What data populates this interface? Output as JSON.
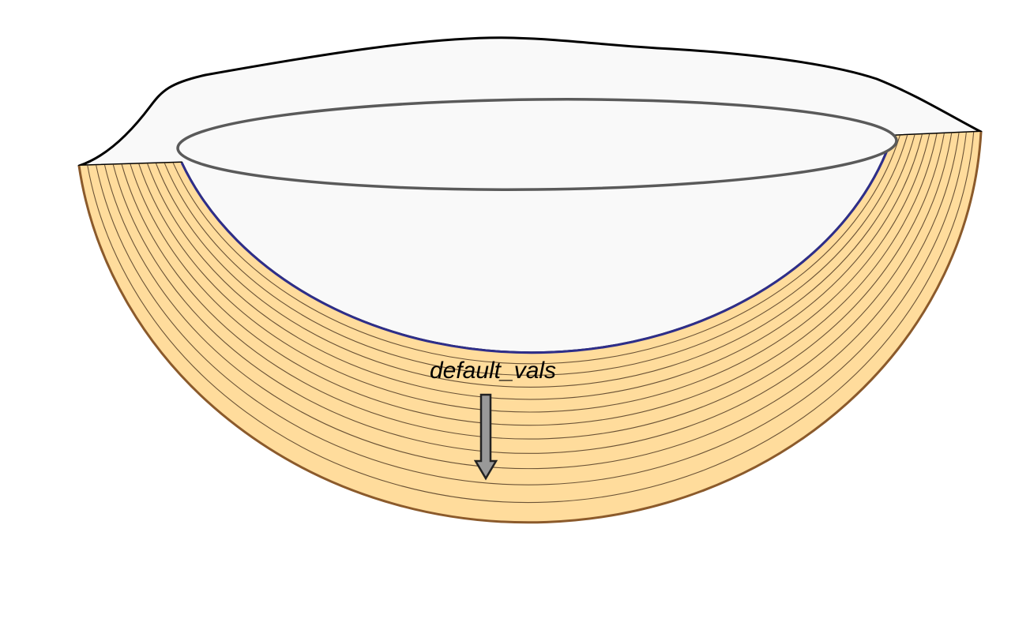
{
  "diagram": {
    "arrow_label": "default_vals",
    "layer_count": 12
  },
  "colors": {
    "background": "#ffffff",
    "surface_fill": "#f9f9f9",
    "surface_outline": "#000000",
    "rim_stroke": "#5a5a5a",
    "inner_bowl_stroke": "#2e2e8a",
    "layer_fill": "#ffdc9c",
    "layer_outline": "#8b5a2b",
    "layer_lines": "#6b5336",
    "arrow_fill": "#999999",
    "arrow_stroke": "#222222",
    "label_color": "#000000"
  }
}
